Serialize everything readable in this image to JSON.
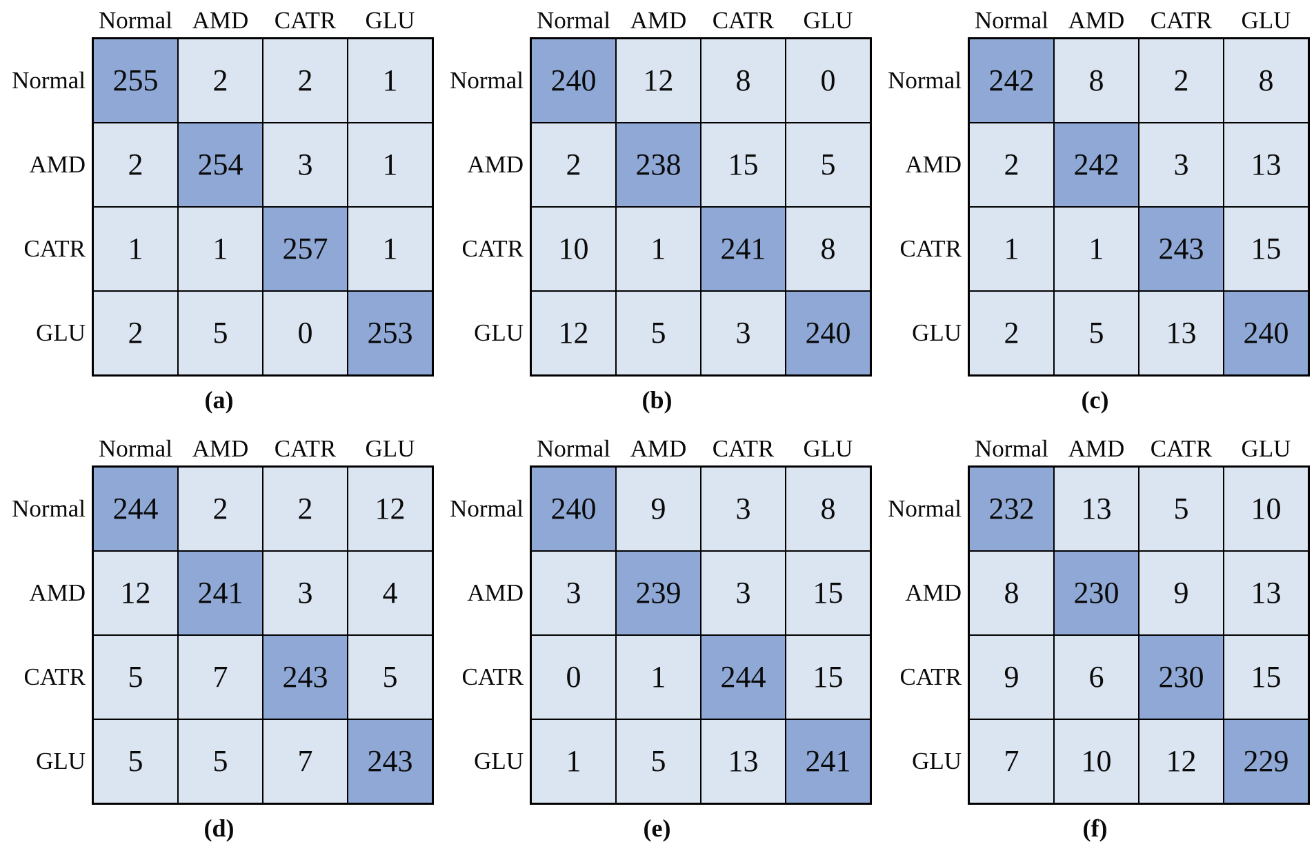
{
  "figure": {
    "background": "#ffffff",
    "layout": "2 rows x 3 columns of confusion matrices",
    "class_labels": [
      "Normal",
      "AMD",
      "CATR",
      "GLU"
    ]
  },
  "palette": {
    "diagonal_fill": "#8FA8D6",
    "off_diagonal_fill": "#DBE4F1",
    "grid_border": "#000000",
    "text_color": "#0a0a0a"
  },
  "chart_data": [
    {
      "type": "heatmap",
      "caption": "(a)",
      "col_labels": [
        "Normal",
        "AMD",
        "CATR",
        "GLU"
      ],
      "row_labels": [
        "Normal",
        "AMD",
        "CATR",
        "GLU"
      ],
      "values": [
        [
          255,
          2,
          2,
          1
        ],
        [
          2,
          254,
          3,
          1
        ],
        [
          1,
          1,
          257,
          1
        ],
        [
          2,
          5,
          0,
          253
        ]
      ],
      "diagonal_highlighted": true,
      "legend": "none",
      "grid": "on"
    },
    {
      "type": "heatmap",
      "caption": "(b)",
      "col_labels": [
        "Normal",
        "AMD",
        "CATR",
        "GLU"
      ],
      "row_labels": [
        "Normal",
        "AMD",
        "CATR",
        "GLU"
      ],
      "values": [
        [
          240,
          12,
          8,
          0
        ],
        [
          2,
          238,
          15,
          5
        ],
        [
          10,
          1,
          241,
          8
        ],
        [
          12,
          5,
          3,
          240
        ]
      ],
      "diagonal_highlighted": true,
      "legend": "none",
      "grid": "on"
    },
    {
      "type": "heatmap",
      "caption": "(c)",
      "col_labels": [
        "Normal",
        "AMD",
        "CATR",
        "GLU"
      ],
      "row_labels": [
        "Normal",
        "AMD",
        "CATR",
        "GLU"
      ],
      "values": [
        [
          242,
          8,
          2,
          8
        ],
        [
          2,
          242,
          3,
          13
        ],
        [
          1,
          1,
          243,
          15
        ],
        [
          2,
          5,
          13,
          240
        ]
      ],
      "diagonal_highlighted": true,
      "legend": "none",
      "grid": "on"
    },
    {
      "type": "heatmap",
      "caption": "(d)",
      "col_labels": [
        "Normal",
        "AMD",
        "CATR",
        "GLU"
      ],
      "row_labels": [
        "Normal",
        "AMD",
        "CATR",
        "GLU"
      ],
      "values": [
        [
          244,
          2,
          2,
          12
        ],
        [
          12,
          241,
          3,
          4
        ],
        [
          5,
          7,
          243,
          5
        ],
        [
          5,
          5,
          7,
          243
        ]
      ],
      "diagonal_highlighted": true,
      "legend": "none",
      "grid": "on"
    },
    {
      "type": "heatmap",
      "caption": "(e)",
      "col_labels": [
        "Normal",
        "AMD",
        "CATR",
        "GLU"
      ],
      "row_labels": [
        "Normal",
        "AMD",
        "CATR",
        "GLU"
      ],
      "values": [
        [
          240,
          9,
          3,
          8
        ],
        [
          3,
          239,
          3,
          15
        ],
        [
          0,
          1,
          244,
          15
        ],
        [
          1,
          5,
          13,
          241
        ]
      ],
      "diagonal_highlighted": true,
      "legend": "none",
      "grid": "on"
    },
    {
      "type": "heatmap",
      "caption": "(f)",
      "col_labels": [
        "Normal",
        "AMD",
        "CATR",
        "GLU"
      ],
      "row_labels": [
        "Normal",
        "AMD",
        "CATR",
        "GLU"
      ],
      "values": [
        [
          232,
          13,
          5,
          10
        ],
        [
          8,
          230,
          9,
          13
        ],
        [
          9,
          6,
          230,
          15
        ],
        [
          7,
          10,
          12,
          229
        ]
      ],
      "diagonal_highlighted": true,
      "legend": "none",
      "grid": "on"
    }
  ]
}
